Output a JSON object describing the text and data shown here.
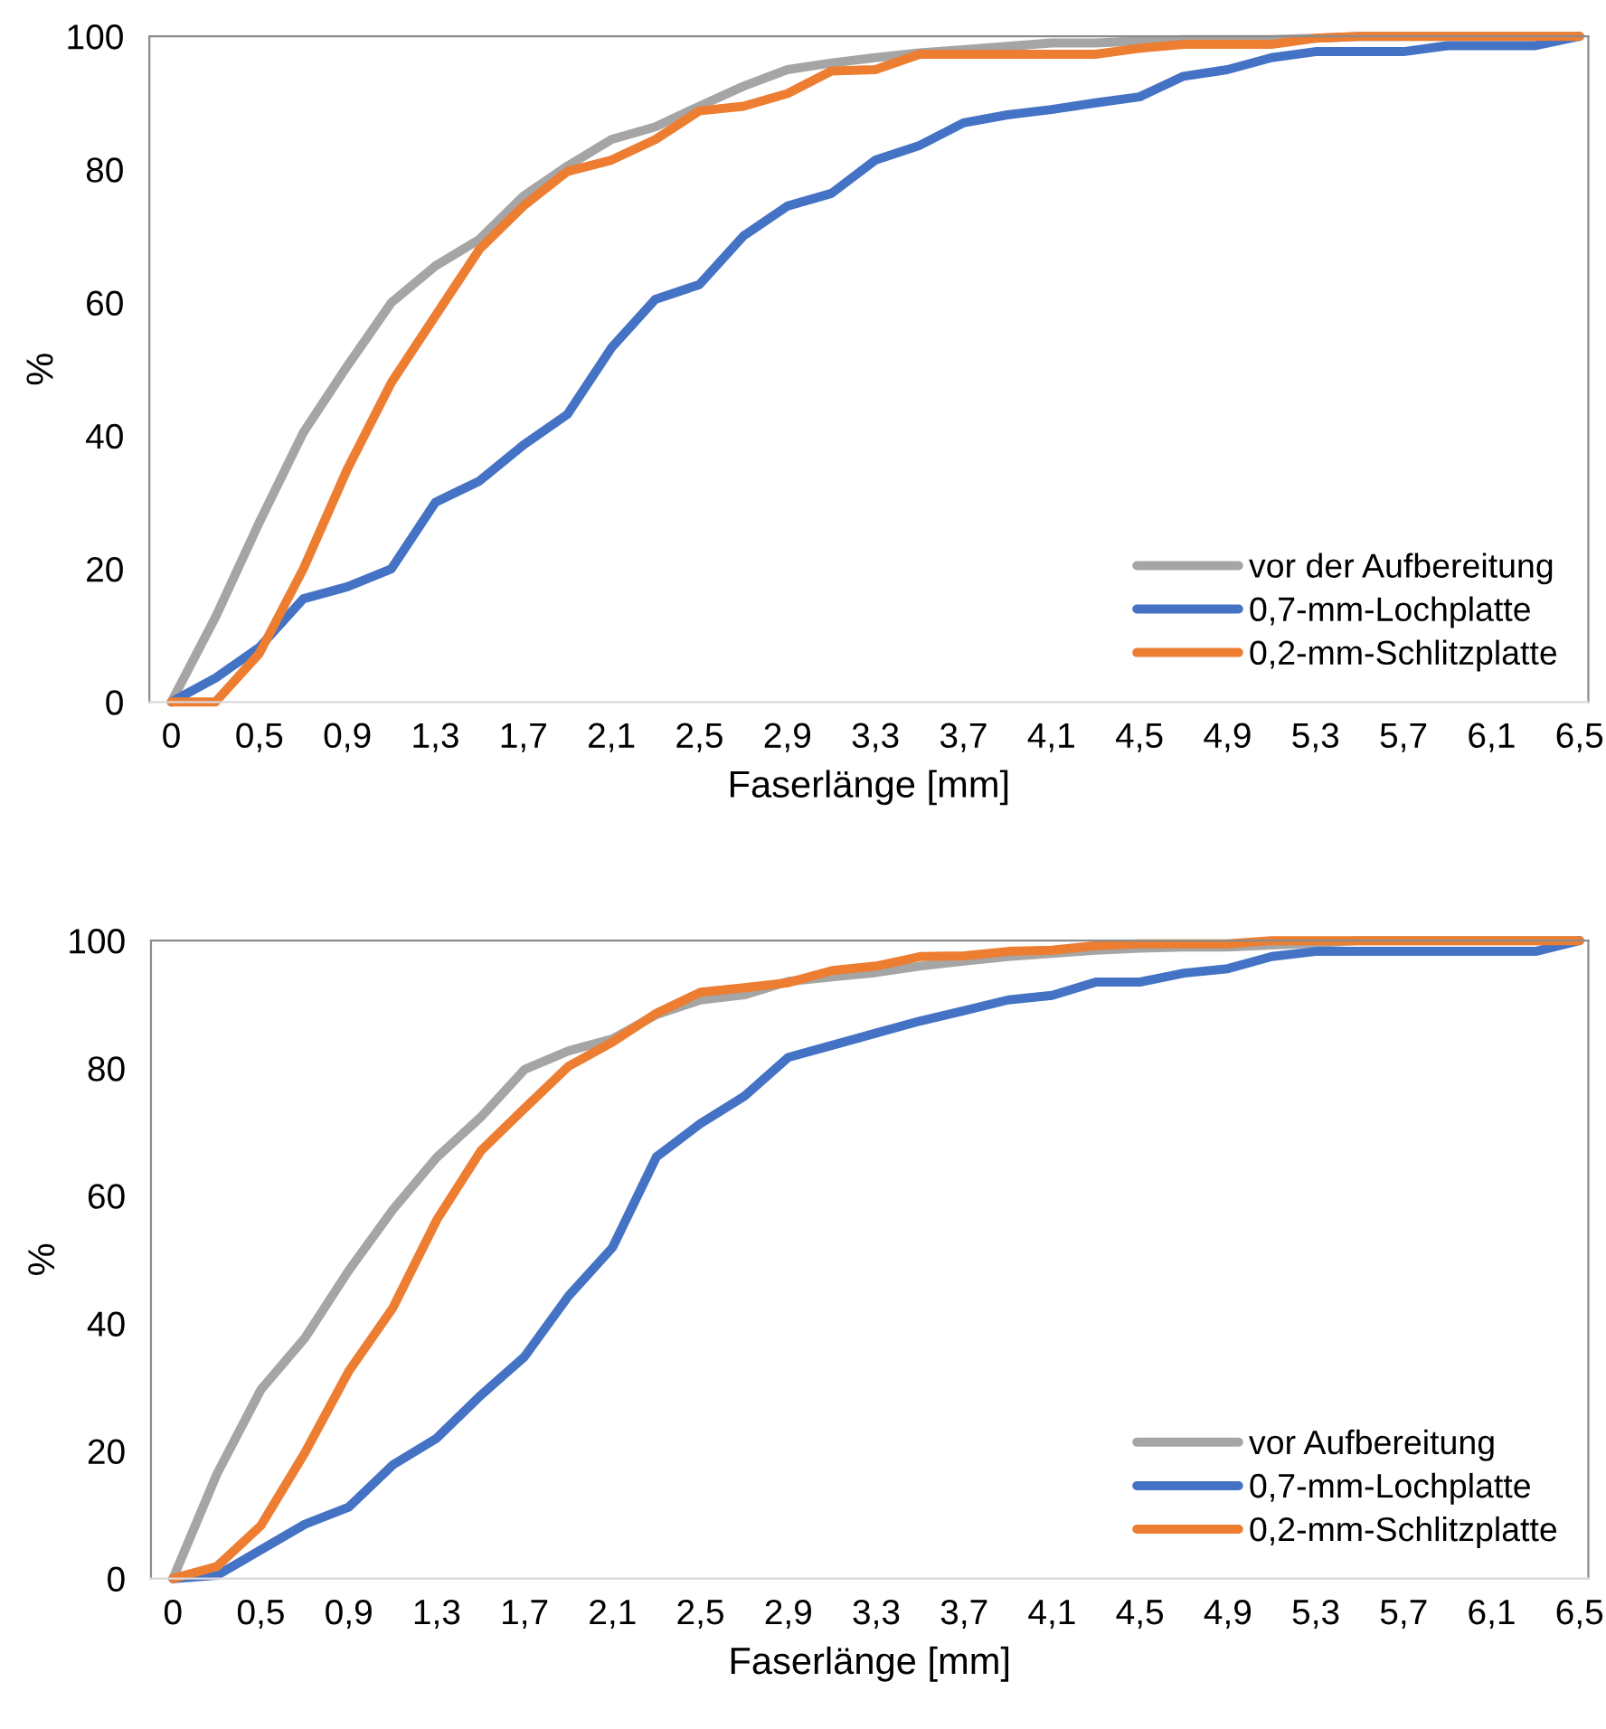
{
  "chart_data": [
    {
      "type": "line",
      "xlabel": "Faserlänge [mm]",
      "ylabel": "%",
      "categories": [
        "0",
        null,
        "0,5",
        null,
        "0,9",
        null,
        "1,3",
        null,
        "1,7",
        null,
        "2,1",
        null,
        "2,5",
        null,
        "2,9",
        null,
        "3,3",
        null,
        "3,7",
        null,
        "4,1",
        null,
        "4,5",
        null,
        "4,9",
        null,
        "5,3",
        null,
        "5,7",
        null,
        "6,1",
        null,
        "6,5"
      ],
      "series": [
        {
          "name": "vor der Aufbereitung",
          "color": "#a5a5a5",
          "values": [
            0,
            12.7,
            27,
            40.5,
            50.5,
            60,
            65.5,
            69.5,
            76,
            80.5,
            84.5,
            86.4,
            89.5,
            92.5,
            95,
            96,
            96.8,
            97.5,
            98,
            98.5,
            99,
            99,
            99.3,
            99.5,
            99.5,
            99.5,
            99.7,
            100,
            100,
            100,
            100,
            100,
            100
          ]
        },
        {
          "name": "0,7-mm-Lochplatte",
          "color": "#4472c4",
          "values": [
            0,
            3.6,
            8.2,
            15.5,
            17.3,
            20,
            30,
            33.2,
            38.6,
            43.2,
            53.2,
            60.5,
            62.7,
            70,
            74.5,
            76.4,
            81.4,
            83.6,
            87,
            88.2,
            89,
            90,
            90.9,
            94,
            95,
            96.8,
            97.7,
            97.7,
            97.7,
            98.6,
            98.6,
            98.6,
            100
          ]
        },
        {
          "name": "0,2-mm-Schlitzplatte",
          "color": "#ed7d31",
          "values": [
            0,
            0,
            7.3,
            20,
            35,
            48,
            58,
            68,
            74.5,
            79.7,
            81.4,
            84.5,
            88.8,
            89.5,
            91.4,
            94.8,
            95,
            97.3,
            97.3,
            97.3,
            97.3,
            97.3,
            98.2,
            98.8,
            98.8,
            98.8,
            99.7,
            100,
            100,
            100,
            100,
            100,
            100
          ]
        }
      ],
      "ylim": [
        0,
        100
      ],
      "yticks": [
        0,
        20,
        40,
        60,
        80,
        100
      ],
      "grid": false,
      "legend": "bottom right",
      "marker": "none",
      "line_style": "solid"
    },
    {
      "type": "line",
      "xlabel": "Faserlänge [mm]",
      "ylabel": "%",
      "categories": [
        "0",
        null,
        "0,5",
        null,
        "0,9",
        null,
        "1,3",
        null,
        "1,7",
        null,
        "2,1",
        null,
        "2,5",
        null,
        "2,9",
        null,
        "3,3",
        null,
        "3,7",
        null,
        "4,1",
        null,
        "4,5",
        null,
        "4,9",
        null,
        "5,3",
        null,
        "5,7",
        null,
        "6,1",
        null,
        "6,5"
      ],
      "series": [
        {
          "name": "vor Aufbereitung",
          "color": "#a5a5a5",
          "values": [
            0,
            16.4,
            29.6,
            37.7,
            48.3,
            57.8,
            66,
            72.3,
            79.8,
            82.7,
            84.6,
            88.4,
            90.7,
            91.5,
            93.6,
            94.3,
            95,
            96,
            96.8,
            97.5,
            98,
            98.5,
            98.8,
            99,
            99,
            99.3,
            99.6,
            100,
            100,
            100,
            100,
            100,
            100
          ]
        },
        {
          "name": "0,7-mm-Lochplatte",
          "color": "#4472c4",
          "values": [
            0,
            0.5,
            4.5,
            8.5,
            11.2,
            17.8,
            22,
            28.7,
            34.8,
            44.3,
            51.9,
            66.1,
            71.3,
            75.6,
            81.7,
            83.6,
            85.5,
            87.4,
            89,
            90.7,
            91.4,
            93.5,
            93.5,
            94.9,
            95.6,
            97.5,
            98.3,
            98.3,
            98.3,
            98.3,
            98.3,
            98.3,
            100
          ]
        },
        {
          "name": "0,2-mm-Schlitzplatte",
          "color": "#ed7d31",
          "values": [
            0,
            1.9,
            8.3,
            19.7,
            32.5,
            42.4,
            56.2,
            67,
            73.7,
            80.3,
            84.1,
            88.6,
            91.9,
            92.6,
            93.4,
            95.3,
            96,
            97.5,
            97.6,
            98.3,
            98.5,
            99.2,
            99.5,
            99.5,
            99.5,
            100,
            100,
            100,
            100,
            100,
            100,
            100,
            100
          ]
        }
      ],
      "ylim": [
        0,
        100
      ],
      "yticks": [
        0,
        20,
        40,
        60,
        80,
        100
      ],
      "grid": false,
      "legend": "bottom right",
      "marker": "none",
      "line_style": "solid"
    }
  ]
}
